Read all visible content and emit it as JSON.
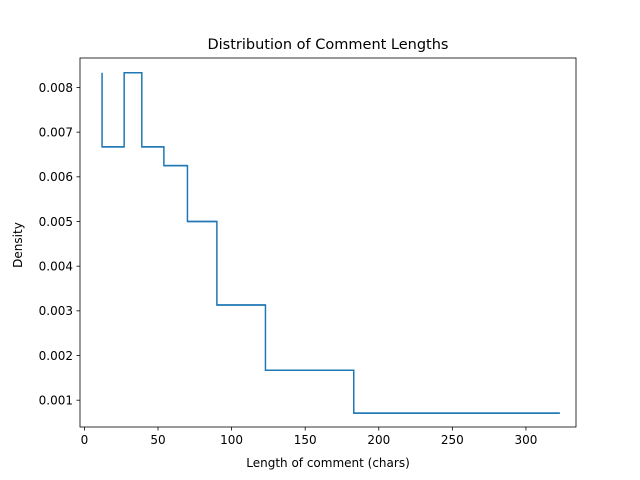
{
  "chart_data": {
    "type": "histogram-step",
    "title": "Distribution of Comment Lengths",
    "xlabel": "Length of comment (chars)",
    "ylabel": "Density",
    "xlim": [
      -3,
      334
    ],
    "ylim": [
      0.0004,
      0.00866
    ],
    "x_ticks": [
      {
        "value": 0,
        "label": "0"
      },
      {
        "value": 50,
        "label": "50"
      },
      {
        "value": 100,
        "label": "100"
      },
      {
        "value": 150,
        "label": "150"
      },
      {
        "value": 200,
        "label": "200"
      },
      {
        "value": 250,
        "label": "250"
      },
      {
        "value": 300,
        "label": "300"
      }
    ],
    "y_ticks": [
      {
        "value": 0.001,
        "label": "0.001"
      },
      {
        "value": 0.002,
        "label": "0.002"
      },
      {
        "value": 0.003,
        "label": "0.003"
      },
      {
        "value": 0.004,
        "label": "0.004"
      },
      {
        "value": 0.005,
        "label": "0.005"
      },
      {
        "value": 0.006,
        "label": "0.006"
      },
      {
        "value": 0.007,
        "label": "0.007"
      },
      {
        "value": 0.008,
        "label": "0.008"
      }
    ],
    "bin_edges": [
      12,
      27,
      39,
      54,
      70,
      90,
      123,
      183,
      323
    ],
    "values": [
      0.00833,
      0.00667,
      0.00833,
      0.00667,
      0.00625,
      0.005,
      0.00313,
      0.00167,
      0.00071
    ],
    "bin_starts": [
      12,
      12,
      27,
      39,
      54,
      70,
      90,
      123,
      183
    ],
    "bin_ends": [
      12,
      27,
      39,
      54,
      70,
      90,
      123,
      183,
      323
    ],
    "series_color": "#1f77b4",
    "grid": false,
    "legend": "none"
  }
}
